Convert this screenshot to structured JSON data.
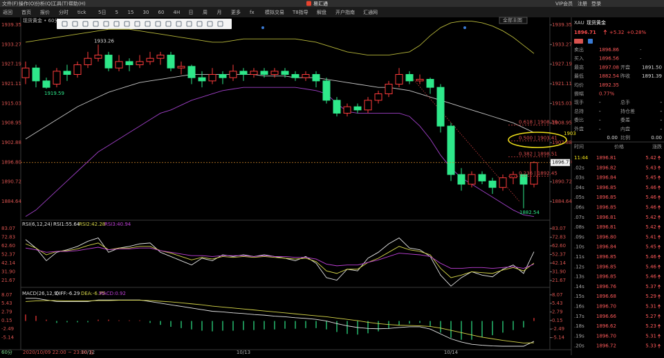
{
  "menu": [
    "文件(F)",
    "操作(O)",
    "分析(Q)",
    "工具(T)",
    "帮助(H)"
  ],
  "app_title": "易汇通",
  "account": [
    "VIP会员",
    "注册",
    "登录"
  ],
  "toolbar": [
    "返回",
    "首页",
    "报价",
    "分时",
    "tick",
    "5日",
    "5",
    "15",
    "30",
    "60",
    "4H",
    "日",
    "周",
    "月",
    "更多",
    "fx",
    "模拟交易",
    "T8指导",
    "解盘",
    "开户指南",
    "汇通网"
  ],
  "chart_button": "全部主图",
  "main": {
    "type": "candlestick",
    "title": "现货黄金 • 60分",
    "period": "60分",
    "time_info": "2020/10/09 22:00 ~ 23:00 五",
    "categories": [
      null,
      null,
      null,
      null,
      null,
      null,
      "10/12",
      null,
      null,
      null,
      null,
      null,
      null,
      null,
      null,
      null,
      null,
      null,
      null,
      null,
      null,
      "10/13",
      null,
      null,
      null,
      null,
      null,
      null,
      null,
      null,
      null,
      null,
      null,
      null,
      null,
      null,
      null,
      null,
      null,
      null,
      null,
      "10/14",
      null,
      null,
      null,
      null,
      null,
      null,
      null,
      null
    ],
    "candles": [
      {
        "open": 1923,
        "close": 1926,
        "high": 1928,
        "low": 1921
      },
      {
        "open": 1926,
        "close": 1922,
        "high": 1927,
        "low": 1920
      },
      {
        "open": 1922,
        "close": 1920,
        "high": 1923,
        "low": 1919.59
      },
      {
        "open": 1921,
        "close": 1925,
        "high": 1926,
        "low": 1920
      },
      {
        "open": 1925,
        "close": 1924,
        "high": 1927,
        "low": 1922
      },
      {
        "open": 1924,
        "close": 1927,
        "high": 1928,
        "low": 1923
      },
      {
        "open": 1927,
        "close": 1929,
        "high": 1931,
        "low": 1926
      },
      {
        "open": 1929,
        "close": 1930,
        "high": 1933.26,
        "low": 1928
      },
      {
        "open": 1930,
        "close": 1926,
        "high": 1931,
        "low": 1925
      },
      {
        "open": 1926,
        "close": 1928,
        "high": 1930,
        "low": 1925
      },
      {
        "open": 1928,
        "close": 1927,
        "high": 1929,
        "low": 1925
      },
      {
        "open": 1927,
        "close": 1928,
        "high": 1930,
        "low": 1926
      },
      {
        "open": 1928,
        "close": 1929,
        "high": 1931,
        "low": 1927
      },
      {
        "open": 1929,
        "close": 1930,
        "high": 1931,
        "low": 1927
      },
      {
        "open": 1930,
        "close": 1926,
        "high": 1931,
        "low": 1925
      },
      {
        "open": 1926,
        "close": 1926.5,
        "high": 1928,
        "low": 1924
      },
      {
        "open": 1926.5,
        "close": 1923,
        "high": 1927,
        "low": 1921
      },
      {
        "open": 1923,
        "close": 1922,
        "high": 1925,
        "low": 1920
      },
      {
        "open": 1922,
        "close": 1924,
        "high": 1926,
        "low": 1921
      },
      {
        "open": 1924,
        "close": 1923,
        "high": 1925,
        "low": 1921
      },
      {
        "open": 1923,
        "close": 1925,
        "high": 1927,
        "low": 1922
      },
      {
        "open": 1925,
        "close": 1924,
        "high": 1926,
        "low": 1922
      },
      {
        "open": 1924,
        "close": 1925,
        "high": 1926,
        "low": 1923
      },
      {
        "open": 1925,
        "close": 1924,
        "high": 1926,
        "low": 1923
      },
      {
        "open": 1924,
        "close": 1925,
        "high": 1926,
        "low": 1923
      },
      {
        "open": 1925,
        "close": 1924,
        "high": 1926,
        "low": 1923
      },
      {
        "open": 1924,
        "close": 1923,
        "high": 1925,
        "low": 1922
      },
      {
        "open": 1923,
        "close": 1924,
        "high": 1925,
        "low": 1922
      },
      {
        "open": 1924,
        "close": 1922,
        "high": 1925,
        "low": 1920
      },
      {
        "open": 1922,
        "close": 1916,
        "high": 1923,
        "low": 1915
      },
      {
        "open": 1916,
        "close": 1912,
        "high": 1917,
        "low": 1911
      },
      {
        "open": 1912,
        "close": 1914,
        "high": 1915,
        "low": 1911
      },
      {
        "open": 1914,
        "close": 1913,
        "high": 1915,
        "low": 1912
      },
      {
        "open": 1913,
        "close": 1916,
        "high": 1917,
        "low": 1912
      },
      {
        "open": 1916,
        "close": 1918,
        "high": 1919,
        "low": 1915
      },
      {
        "open": 1918,
        "close": 1921,
        "high": 1922,
        "low": 1917
      },
      {
        "open": 1921,
        "close": 1924,
        "high": 1926,
        "low": 1920
      },
      {
        "open": 1924,
        "close": 1922,
        "high": 1925,
        "low": 1921
      },
      {
        "open": 1922,
        "close": 1922.5,
        "high": 1924,
        "low": 1921
      },
      {
        "open": 1922.5,
        "close": 1920,
        "high": 1923,
        "low": 1918
      },
      {
        "open": 1920,
        "close": 1908,
        "high": 1921,
        "low": 1906
      },
      {
        "open": 1908,
        "close": 1893,
        "high": 1909,
        "low": 1891
      },
      {
        "open": 1893,
        "close": 1890,
        "high": 1895,
        "low": 1888
      },
      {
        "open": 1890,
        "close": 1893,
        "high": 1894,
        "low": 1889
      },
      {
        "open": 1893,
        "close": 1891,
        "high": 1894,
        "low": 1890
      },
      {
        "open": 1891,
        "close": 1889,
        "high": 1892,
        "low": 1887
      },
      {
        "open": 1889,
        "close": 1892,
        "high": 1893,
        "low": 1888
      },
      {
        "open": 1892,
        "close": 1893,
        "high": 1894,
        "low": 1890
      },
      {
        "open": 1893,
        "close": 1890,
        "high": 1893,
        "low": 1882.54
      },
      {
        "open": 1890,
        "close": 1896.71,
        "high": 1897.08,
        "low": 1889
      }
    ],
    "bands": [
      {
        "color": "#b8b83a",
        "values": [
          1934,
          1934.5,
          1935,
          1935.5,
          1936,
          1936.5,
          1937,
          1937.5,
          1938,
          1938,
          1938,
          1937.5,
          1937,
          1936.5,
          1936,
          1935.5,
          1935,
          1934.5,
          1934,
          1934,
          1934.5,
          1935,
          1935,
          1935,
          1935,
          1935,
          1935,
          1934.5,
          1934,
          1933,
          1932,
          1931,
          1930.5,
          1930,
          1930,
          1930,
          1930.5,
          1931,
          1933,
          1936,
          1938.5,
          1940,
          1940.5,
          1940.5,
          1940,
          1939,
          1937.5,
          1935.5,
          1933,
          1930.5
        ]
      },
      {
        "color": "#c8c8c8",
        "values": [
          1904,
          1906,
          1908,
          1910,
          1912,
          1914,
          1915.5,
          1917,
          1918.5,
          1919.5,
          1920.5,
          1921.5,
          1922,
          1922.5,
          1923,
          1923.5,
          1924,
          1924,
          1924,
          1924,
          1924,
          1924,
          1924,
          1923.5,
          1923.5,
          1923.5,
          1923,
          1923,
          1923,
          1922.5,
          1922,
          1921.5,
          1921,
          1920.5,
          1920,
          1920,
          1919.5,
          1919,
          1918,
          1917,
          1916,
          1915,
          1914,
          1913,
          1912,
          1911,
          1910,
          1909,
          1907.5,
          1906
        ]
      },
      {
        "color": "#a040c8",
        "values": [
          1880,
          1882,
          1885,
          1888,
          1891,
          1894,
          1897,
          1900,
          1902,
          1904,
          1906,
          1908,
          1910,
          1912,
          1913,
          1914.5,
          1916,
          1917,
          1918,
          1919,
          1919.5,
          1920,
          1920,
          1920,
          1920,
          1920,
          1920,
          1919.5,
          1919,
          1918,
          1915,
          1912.5,
          1912,
          1912,
          1912,
          1912,
          1912,
          1911,
          1908,
          1904,
          1899,
          1895,
          1892,
          1890,
          1888,
          1886,
          1884,
          1882,
          1880.5,
          1880
        ]
      }
    ],
    "ylim": [
      1878.85,
      1941.7
    ],
    "yticks": [
      1939.35,
      1933.27,
      1927.19,
      1921.11,
      1915.03,
      1908.95,
      1902.88,
      {
        "value": 1896.8,
        "label": "1896.80"
      },
      1890.72,
      1884.64
    ],
    "last_price": 1896.71,
    "fib": [
      {
        "value": 1908.3,
        "label": "0.618 | 1908.30"
      },
      {
        "value": 1903.41,
        "label": "0.500 | 1903.41"
      },
      {
        "value": 1898.51,
        "label": "0.382 | 1898.51"
      },
      {
        "value": 1892.45,
        "label": "0.236 | 1892.45"
      }
    ],
    "annotation": "1903"
  },
  "rsi": {
    "type": "line",
    "title": "RSI(6,12,24)",
    "ylim": [
      17.6,
      91.3
    ],
    "yticks": [
      83.07,
      72.83,
      {
        "value": 62.6,
        "label": "62.60"
      },
      52.37,
      42.14,
      {
        "value": 31.9,
        "label": "31.90"
      },
      21.67
    ],
    "series": [
      {
        "legend": "RSI1:55.64",
        "color": "#e8e8e8",
        "values": [
          70,
          60,
          45,
          55,
          58,
          62,
          68,
          72,
          55,
          60,
          62,
          65,
          66,
          55,
          50,
          45,
          40,
          48,
          45,
          52,
          50,
          52,
          50,
          52,
          50,
          48,
          45,
          50,
          42,
          25,
          22,
          35,
          33,
          48,
          55,
          65,
          72,
          60,
          58,
          50,
          28,
          15,
          25,
          32,
          28,
          26,
          35,
          40,
          30,
          55.64
        ]
      },
      {
        "legend": "RSI2:42.28",
        "color": "#d8d84a",
        "values": [
          65,
          60,
          52,
          56,
          57,
          59,
          63,
          66,
          58,
          60,
          60,
          62,
          62,
          57,
          54,
          50,
          46,
          49,
          47,
          50,
          49,
          50,
          49,
          50,
          49,
          48,
          47,
          48,
          44,
          33,
          30,
          35,
          35,
          43,
          48,
          55,
          62,
          58,
          56,
          52,
          36,
          25,
          28,
          32,
          31,
          30,
          34,
          37,
          33,
          42.28
        ]
      },
      {
        "legend": "RSI3:40.94",
        "color": "#c040d8",
        "values": [
          60,
          58,
          55,
          56,
          56,
          57,
          59,
          61,
          58,
          59,
          59,
          60,
          60,
          57,
          55,
          53,
          51,
          51,
          50,
          51,
          51,
          51,
          50,
          51,
          50,
          50,
          49,
          49,
          47,
          41,
          39,
          40,
          40,
          43,
          46,
          50,
          54,
          53,
          52,
          50,
          42,
          36,
          36,
          37,
          37,
          36,
          37,
          38,
          36,
          40.94
        ]
      }
    ]
  },
  "macd": {
    "type": "line",
    "title": "MACD(26,12,9)",
    "ylim": [
      -8.44,
      9.31
    ],
    "yticks": [
      8.07,
      5.43,
      2.79,
      0.15,
      -2.49,
      -5.14
    ],
    "series": [
      {
        "legend": "DIFF:-6.29",
        "color": "#e8e8e8",
        "values": [
          7,
          7,
          6.5,
          6,
          6,
          6,
          6,
          6.5,
          6.5,
          6.5,
          6.5,
          6.5,
          6,
          5.5,
          5,
          4.5,
          4,
          3.5,
          3,
          2.8,
          2.5,
          2.3,
          2,
          1.8,
          1.5,
          1.3,
          1,
          0.8,
          0.5,
          0,
          -0.8,
          -1.5,
          -2,
          -2.3,
          -2.4,
          -2.3,
          -2,
          -1.8,
          -1.8,
          -2.5,
          -4,
          -5.5,
          -6.5,
          -7.2,
          -7.5,
          -7.7,
          -7.8,
          -7.8,
          -7.8,
          -6.29
        ]
      },
      {
        "legend": "DEA:-6.75",
        "color": "#d8d84a",
        "values": [
          6,
          6.2,
          6.3,
          6.3,
          6.2,
          6.2,
          6.2,
          6.3,
          6.3,
          6.4,
          6.4,
          6.4,
          6.3,
          6.1,
          5.9,
          5.6,
          5.3,
          5,
          4.6,
          4.3,
          4,
          3.7,
          3.4,
          3.1,
          2.8,
          2.5,
          2.2,
          1.9,
          1.6,
          1.3,
          0.9,
          0.5,
          0.1,
          -0.4,
          -0.8,
          -1.1,
          -1.3,
          -1.4,
          -1.5,
          -1.7,
          -2.2,
          -2.9,
          -3.6,
          -4.3,
          -5,
          -5.5,
          -6,
          -6.4,
          -6.8,
          -6.75
        ]
      }
    ],
    "histogram": {
      "legend": "MACD:0.92",
      "color": "#c040d8",
      "values": [
        2,
        1.6,
        0.4,
        -0.6,
        -0.4,
        -0.4,
        -0.4,
        0.4,
        0.4,
        0.2,
        0.2,
        0.2,
        -0.6,
        -1.2,
        -1.8,
        -2.2,
        -2.6,
        -3,
        -3.2,
        -3,
        -3,
        -2.8,
        -2.8,
        -2.6,
        -2.6,
        -2.4,
        -2.4,
        -2.2,
        -2.2,
        -2.6,
        -3.4,
        -4,
        -4.2,
        -3.8,
        -3.2,
        -2.4,
        -1.4,
        -0.8,
        -0.6,
        -1.6,
        -3.6,
        -5.2,
        -5.8,
        -5.8,
        -5,
        -4.4,
        -3.6,
        -2.8,
        -2,
        0.92
      ]
    }
  },
  "quote": {
    "symbol": "XAU",
    "name": "现货黄金",
    "price": "1896.71",
    "change": "+5.32",
    "change_pct": "+0.28%",
    "rows": [
      [
        "卖出",
        "1896.86",
        "-"
      ],
      [
        "买入",
        "1896.56",
        "-"
      ],
      [
        "最高",
        "1897.08",
        "开盘",
        "1891.50"
      ],
      [
        "最低",
        "1882.54",
        "昨收",
        "1891.39"
      ],
      [
        "均价",
        "1892.35"
      ],
      [
        "振幅",
        "0.77%"
      ],
      [
        "现手",
        "-",
        "总手",
        "-"
      ],
      [
        "总持",
        "-",
        "持仓差",
        "-"
      ],
      [
        "委比",
        "-",
        "委差",
        "-"
      ],
      [
        "外盘",
        "-",
        "内盘",
        "-"
      ]
    ],
    "ratio_row": [
      "0.00",
      "比例",
      "0.00"
    ],
    "ticks_header": [
      "时间",
      "价格",
      "涨跌"
    ],
    "ticks": [
      [
        "11:44",
        "1896.81",
        "5.42"
      ],
      [
        ".02s",
        "1896.82",
        "5.43"
      ],
      [
        ".03s",
        "1896.84",
        "5.45"
      ],
      [
        ".04s",
        "1896.85",
        "5.46"
      ],
      [
        ".05s",
        "1896.85",
        "5.46"
      ],
      [
        ".06s",
        "1896.85",
        "5.46"
      ],
      [
        ".07s",
        "1896.81",
        "5.42"
      ],
      [
        ".08s",
        "1896.81",
        "5.42"
      ],
      [
        ".09s",
        "1896.80",
        "5.41"
      ],
      [
        ".10s",
        "1896.84",
        "5.45"
      ],
      [
        ".11s",
        "1896.85",
        "5.46"
      ],
      [
        ".12s",
        "1896.85",
        "5.46"
      ],
      [
        ".13s",
        "1896.85",
        "5.46"
      ],
      [
        ".14s",
        "1896.76",
        "5.37"
      ],
      [
        ".15s",
        "1896.68",
        "5.29"
      ],
      [
        ".16s",
        "1896.70",
        "5.31"
      ],
      [
        ".17s",
        "1896.66",
        "5.27"
      ],
      [
        ".18s",
        "1896.62",
        "5.23"
      ],
      [
        ".19s",
        "1896.70",
        "5.31"
      ],
      [
        ".20s",
        "1896.72",
        "5.33"
      ]
    ]
  }
}
